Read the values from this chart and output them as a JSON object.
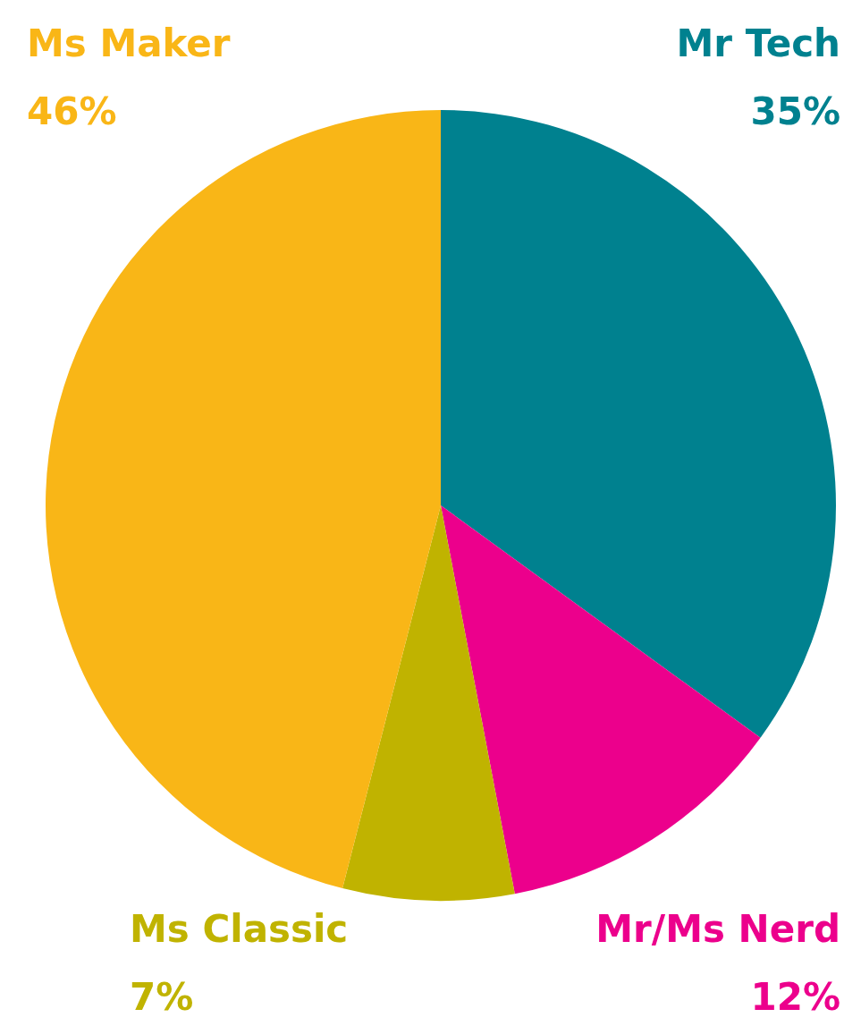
{
  "chart_data": {
    "type": "pie",
    "categories": [
      "Mr Tech",
      "Mr/Ms Nerd",
      "Ms Classic",
      "Ms Maker"
    ],
    "values": [
      35,
      12,
      7,
      46
    ],
    "value_labels": [
      "35%",
      "12%",
      "7%",
      "46%"
    ],
    "colors": [
      "#00818f",
      "#ec008c",
      "#c0b300",
      "#f9b617"
    ]
  }
}
